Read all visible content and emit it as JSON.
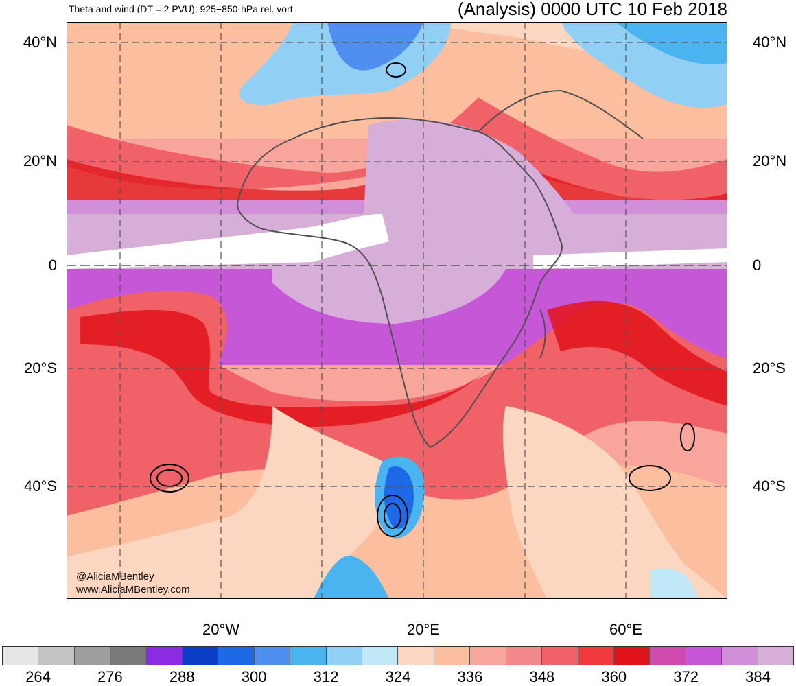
{
  "header": {
    "left_title": "Theta and wind (DT = 2 PVU); 925−850-hPa rel. vort.",
    "right_title": "(Analysis) 0000 UTC 10 Feb 2018"
  },
  "map": {
    "lat_labels": [
      "40°N",
      "20°N",
      "0",
      "20°S",
      "40°S"
    ],
    "lon_labels": [
      "20°W",
      "20°E",
      "60°E"
    ],
    "credit_line1": "@AliciaMBentley",
    "credit_line2": "www.AliciaMBentley.com"
  },
  "colorbar": {
    "colors": [
      "#e6e6e6",
      "#c4c4c4",
      "#9e9e9e",
      "#7a7a7a",
      "#8b2be2",
      "#0b3fc8",
      "#1e6ae6",
      "#4f8ff0",
      "#49b4ef",
      "#92cff5",
      "#c0e8f6",
      "#fbd6c1",
      "#fbbf9f",
      "#f8a69c",
      "#f3888c",
      "#f06268",
      "#f03a3e",
      "#e0141a",
      "#d04bb0",
      "#c657d6",
      "#d08fd8",
      "#d6aed8"
    ],
    "labels": [
      "264",
      "276",
      "288",
      "300",
      "312",
      "324",
      "336",
      "348",
      "360",
      "372",
      "384"
    ]
  }
}
